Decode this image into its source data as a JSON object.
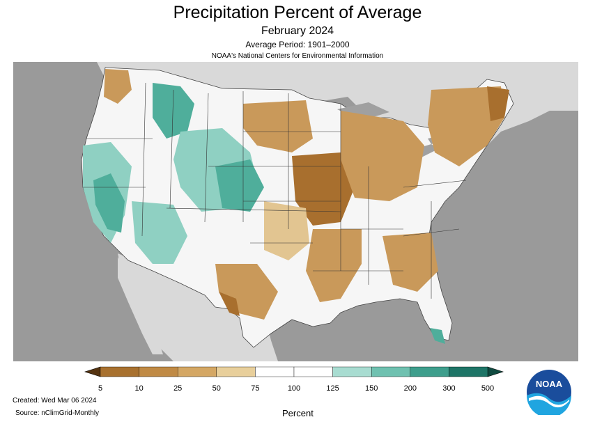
{
  "title": "Precipitation Percent of Average",
  "subtitle": "February 2024",
  "average_period": "Average Period: 1901–2000",
  "agency": "NOAA's National Centers for Environmental Information",
  "created": "Created: Wed Mar 06 2024",
  "source": "Source: nClimGrid-Monthly",
  "legend": {
    "unit_label": "Percent",
    "tick_labels": [
      "5",
      "10",
      "25",
      "50",
      "75",
      "100",
      "125",
      "150",
      "200",
      "300",
      "500"
    ],
    "colors": [
      "#8c5a1e",
      "#a8712f",
      "#c08a45",
      "#d4a764",
      "#e8cf9b",
      "#ffffff",
      "#ffffff",
      "#a8dcd1",
      "#6fc1b0",
      "#3e9e8c",
      "#1e7567"
    ],
    "end_left_color": "#553310",
    "end_right_color": "#0f4a40"
  },
  "logo_text": "NOAA",
  "map_colors": {
    "ocean": "#9a9a9a",
    "land_outside": "#d9d9d9",
    "lakes": "#a0a0a0",
    "dry_strong": "#a86f2e",
    "dry": "#c9995a",
    "dry_light": "#e2c591",
    "normal": "#f6f6f6",
    "wet_light": "#8fd0c2",
    "wet": "#4fae9b",
    "wet_strong": "#2e8c7a"
  }
}
